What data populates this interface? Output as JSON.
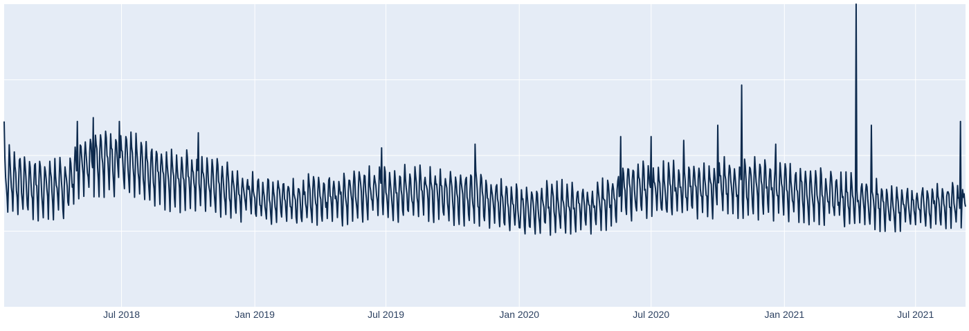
{
  "chart_data": {
    "type": "line",
    "title": "",
    "xlabel": "",
    "ylabel": "",
    "x_start": "2018-01-20",
    "x_end": "2021-09-08",
    "x_ticks": [
      {
        "date": "2018-07-01",
        "label": "Jul 2018"
      },
      {
        "date": "2019-01-01",
        "label": "Jan 2019"
      },
      {
        "date": "2019-07-01",
        "label": "Jul 2019"
      },
      {
        "date": "2020-01-01",
        "label": "Jan 2020"
      },
      {
        "date": "2020-07-01",
        "label": "Jul 2020"
      },
      {
        "date": "2021-01-01",
        "label": "Jan 2021"
      },
      {
        "date": "2021-07-01",
        "label": "Jul 2021"
      }
    ],
    "y_tick_labels_shown": false,
    "ylim": [
      0,
      4
    ],
    "grid": true,
    "legend": "none",
    "series": [
      {
        "color": "#0d2a4d",
        "weekly_pattern": [
          1.0,
          0.88,
          0.74,
          0.62,
          0.48,
          0.3,
          0.72
        ],
        "points": [
          [
            "2018-01-20",
            2.1,
            0.9
          ],
          [
            "2018-03-01",
            1.95,
            0.85
          ],
          [
            "2018-04-15",
            1.9,
            0.9
          ],
          [
            "2018-05-05",
            2.2,
            1.2
          ],
          [
            "2018-06-01",
            2.35,
            1.2
          ],
          [
            "2018-07-10",
            2.25,
            1.15
          ],
          [
            "2018-09-01",
            2.05,
            1.05
          ],
          [
            "2018-11-01",
            1.95,
            1.0
          ],
          [
            "2019-01-01",
            1.7,
            0.95
          ],
          [
            "2019-03-01",
            1.65,
            0.9
          ],
          [
            "2019-05-01",
            1.75,
            0.9
          ],
          [
            "2019-07-01",
            1.8,
            0.95
          ],
          [
            "2019-09-01",
            1.8,
            0.9
          ],
          [
            "2019-11-01",
            1.75,
            0.85
          ],
          [
            "2020-01-01",
            1.55,
            0.75
          ],
          [
            "2020-03-01",
            1.6,
            0.8
          ],
          [
            "2020-04-15",
            1.55,
            0.8
          ],
          [
            "2020-06-01",
            1.85,
            0.95
          ],
          [
            "2020-08-01",
            1.85,
            0.95
          ],
          [
            "2020-10-01",
            1.9,
            0.95
          ],
          [
            "2020-12-01",
            1.9,
            0.95
          ],
          [
            "2021-02-01",
            1.8,
            0.9
          ],
          [
            "2021-04-01",
            1.7,
            0.9
          ],
          [
            "2021-06-01",
            1.55,
            0.85
          ],
          [
            "2021-09-08",
            1.6,
            0.9
          ]
        ],
        "spikes": [
          [
            "2018-01-20",
            2.45
          ],
          [
            "2018-05-01",
            2.45
          ],
          [
            "2018-05-23",
            2.5
          ],
          [
            "2018-06-28",
            2.45
          ],
          [
            "2018-10-15",
            2.3
          ],
          [
            "2019-06-25",
            2.1
          ],
          [
            "2019-11-01",
            2.15
          ],
          [
            "2020-05-20",
            2.25
          ],
          [
            "2020-07-01",
            2.25
          ],
          [
            "2020-08-15",
            2.2
          ],
          [
            "2020-10-01",
            2.4
          ],
          [
            "2020-11-03",
            2.93
          ],
          [
            "2020-12-20",
            2.15
          ],
          [
            "2021-04-10",
            4.0
          ],
          [
            "2021-05-01",
            2.4
          ],
          [
            "2021-09-01",
            2.45
          ]
        ]
      }
    ]
  }
}
